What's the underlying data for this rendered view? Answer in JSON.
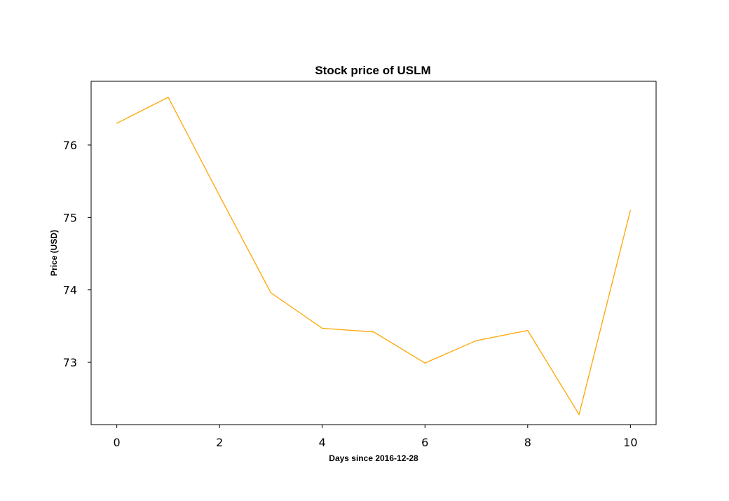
{
  "chart_data": {
    "type": "line",
    "title": "Stock price of USLM",
    "xlabel": "Days since 2016-12-28",
    "ylabel": "Price (USD)",
    "x": [
      0,
      1,
      2,
      3,
      4,
      5,
      6,
      7,
      8,
      9,
      10
    ],
    "series": [
      {
        "values": [
          76.3,
          76.66,
          75.3,
          73.96,
          73.47,
          73.42,
          72.99,
          73.3,
          73.44,
          72.28,
          75.1
        ],
        "color": "#ffa500"
      }
    ],
    "xlim": [
      -0.5,
      10.5
    ],
    "ylim": [
      72.14,
      76.88
    ],
    "xticks": [
      0,
      2,
      4,
      6,
      8,
      10
    ],
    "yticks": [
      73,
      74,
      75,
      76
    ],
    "grid": false,
    "legend": "none"
  }
}
